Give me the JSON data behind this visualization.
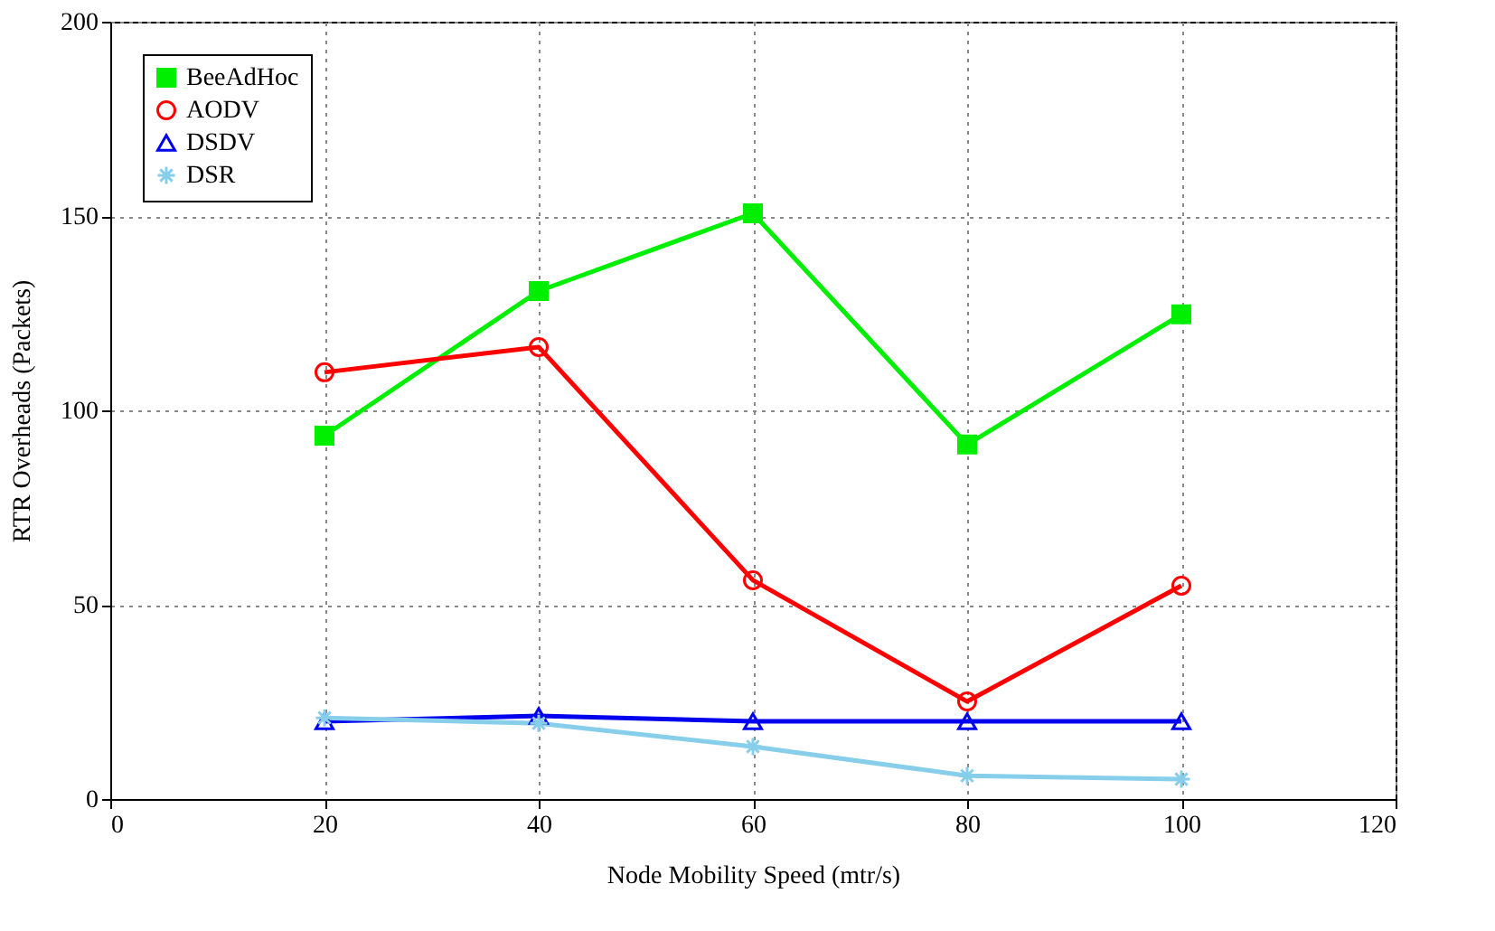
{
  "chart_data": {
    "type": "line",
    "xlabel": "Node Mobility Speed (mtr/s)",
    "ylabel": "RTR Overheads (Packets)",
    "x": [
      20,
      40,
      60,
      80,
      100
    ],
    "series": [
      {
        "name": "BeeAdHoc",
        "color": "#00ee00",
        "marker": "square",
        "values": [
          93.5,
          130.7,
          150.7,
          91.2,
          124.7
        ]
      },
      {
        "name": "AODV",
        "color": "#ff0000",
        "marker": "circle",
        "values": [
          109.8,
          116.3,
          56.3,
          25.1,
          54.9
        ]
      },
      {
        "name": "DSDV",
        "color": "#0000ee",
        "marker": "triangle",
        "values": [
          20,
          21.4,
          20,
          20,
          20
        ]
      },
      {
        "name": "DSR",
        "color": "#87ceeb",
        "marker": "cross",
        "values": [
          20.9,
          19.5,
          13.5,
          6,
          5.1
        ]
      }
    ],
    "xlim": [
      0,
      120
    ],
    "xticks": [
      0,
      20,
      40,
      60,
      80,
      100,
      120
    ],
    "ylim": [
      0,
      200
    ],
    "yticks": [
      0,
      50,
      100,
      150,
      200
    ],
    "grid": true,
    "legend": "top left",
    "line_style": "solid"
  }
}
